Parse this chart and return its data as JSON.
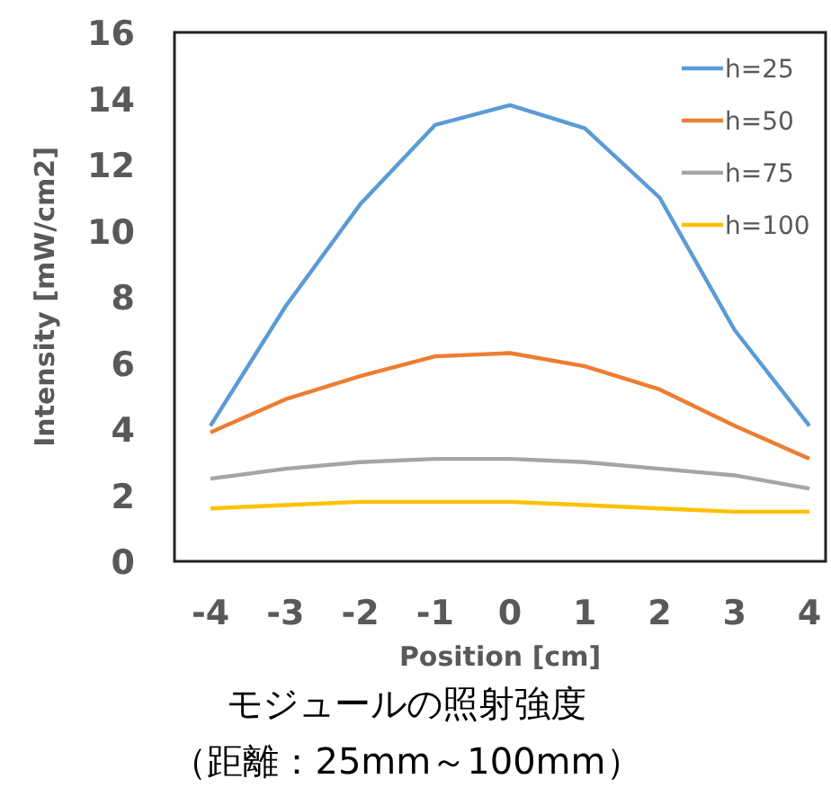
{
  "chart_data": {
    "type": "line",
    "title": "モジュールの照射強度",
    "subtitle": "（距離：25mm～100mm）",
    "xlabel": "Position [cm]",
    "ylabel": "Intensity [mW/cm2]",
    "categories": [
      "-4",
      "-3",
      "-2",
      "-1",
      "0",
      "1",
      "2",
      "3",
      "4"
    ],
    "series": [
      {
        "name": "h=25",
        "color": "#5b9bd5",
        "values": [
          4.1,
          7.7,
          10.8,
          13.2,
          13.8,
          13.1,
          11.0,
          7.0,
          4.1
        ]
      },
      {
        "name": "h=50",
        "color": "#ed7d31",
        "values": [
          3.9,
          4.9,
          5.6,
          6.2,
          6.3,
          5.9,
          5.2,
          4.1,
          3.1
        ]
      },
      {
        "name": "h=75",
        "color": "#a5a5a5",
        "values": [
          2.5,
          2.8,
          3.0,
          3.1,
          3.1,
          3.0,
          2.8,
          2.6,
          2.2
        ]
      },
      {
        "name": "h=100",
        "color": "#ffc000",
        "values": [
          1.6,
          1.7,
          1.8,
          1.8,
          1.8,
          1.7,
          1.6,
          1.5,
          1.5
        ]
      }
    ],
    "ylim": [
      0,
      16
    ],
    "yticks": [
      0,
      2,
      4,
      6,
      8,
      10,
      12,
      14,
      16
    ],
    "grid": false,
    "legend": "top right",
    "marker": "none",
    "line_style": "solid"
  }
}
